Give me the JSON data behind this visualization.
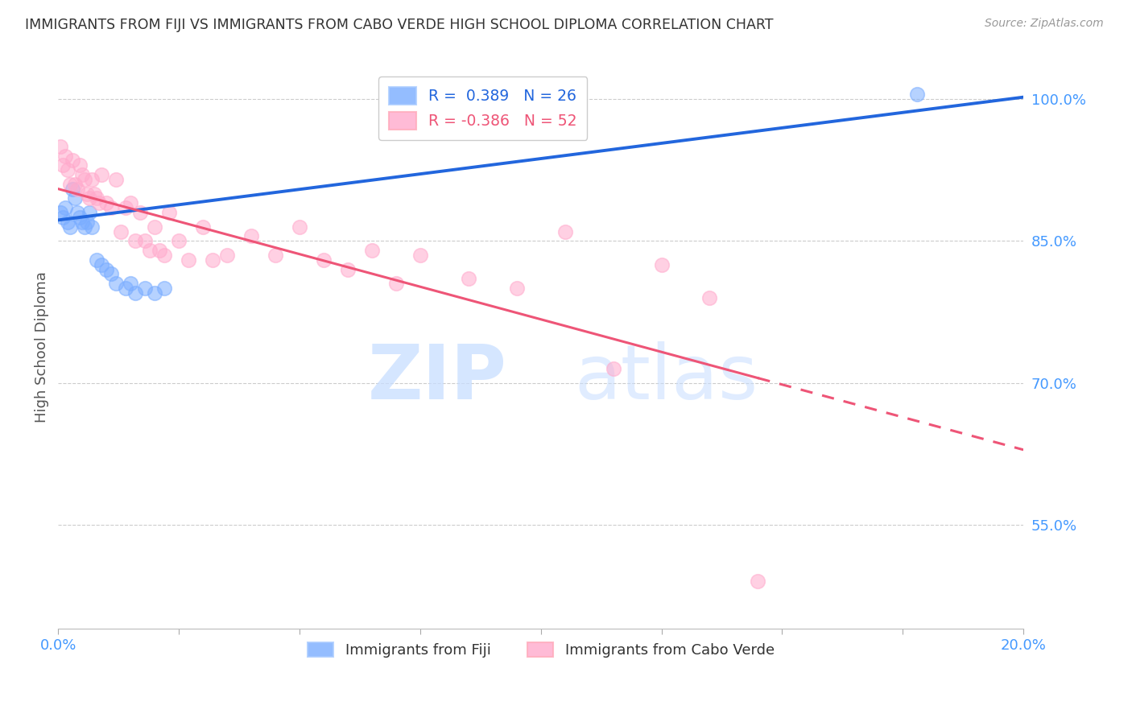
{
  "title": "IMMIGRANTS FROM FIJI VS IMMIGRANTS FROM CABO VERDE HIGH SCHOOL DIPLOMA CORRELATION CHART",
  "source": "Source: ZipAtlas.com",
  "ylabel": "High School Diploma",
  "legend_fiji": "Immigrants from Fiji",
  "legend_cabo": "Immigrants from Cabo Verde",
  "fiji_R": "0.389",
  "fiji_N": "26",
  "cabo_R": "-0.386",
  "cabo_N": "52",
  "fiji_color": "#7aadff",
  "cabo_color": "#ffaacc",
  "line_fiji_color": "#2266dd",
  "line_cabo_color": "#ee5577",
  "xlim": [
    0.0,
    20.0
  ],
  "ylim": [
    44.0,
    103.5
  ],
  "yticks": [
    55.0,
    70.0,
    85.0,
    100.0
  ],
  "xtick_positions": [
    0.0,
    2.5,
    5.0,
    7.5,
    10.0,
    12.5,
    15.0,
    17.5,
    20.0
  ],
  "fiji_x": [
    0.05,
    0.1,
    0.15,
    0.2,
    0.25,
    0.3,
    0.35,
    0.4,
    0.45,
    0.5,
    0.55,
    0.6,
    0.65,
    0.7,
    0.8,
    0.9,
    1.0,
    1.1,
    1.2,
    1.4,
    1.5,
    1.6,
    1.8,
    2.0,
    2.2,
    17.8
  ],
  "fiji_y": [
    88.0,
    87.5,
    88.5,
    87.0,
    86.5,
    90.5,
    89.5,
    88.0,
    87.5,
    87.0,
    86.5,
    87.0,
    88.0,
    86.5,
    83.0,
    82.5,
    82.0,
    81.5,
    80.5,
    80.0,
    80.5,
    79.5,
    80.0,
    79.5,
    80.0,
    100.5
  ],
  "cabo_x": [
    0.05,
    0.1,
    0.15,
    0.2,
    0.25,
    0.3,
    0.35,
    0.4,
    0.45,
    0.5,
    0.55,
    0.6,
    0.65,
    0.7,
    0.75,
    0.8,
    0.85,
    0.9,
    1.0,
    1.1,
    1.2,
    1.3,
    1.4,
    1.5,
    1.6,
    1.7,
    1.8,
    1.9,
    2.0,
    2.1,
    2.2,
    2.3,
    2.5,
    2.7,
    3.0,
    3.2,
    3.5,
    4.0,
    4.5,
    5.0,
    5.5,
    6.0,
    6.5,
    7.0,
    7.5,
    8.5,
    9.5,
    10.5,
    11.5,
    12.5,
    13.5,
    14.5
  ],
  "cabo_y": [
    95.0,
    93.0,
    94.0,
    92.5,
    91.0,
    93.5,
    91.0,
    90.5,
    93.0,
    92.0,
    91.5,
    90.0,
    89.5,
    91.5,
    90.0,
    89.5,
    89.0,
    92.0,
    89.0,
    88.5,
    91.5,
    86.0,
    88.5,
    89.0,
    85.0,
    88.0,
    85.0,
    84.0,
    86.5,
    84.0,
    83.5,
    88.0,
    85.0,
    83.0,
    86.5,
    83.0,
    83.5,
    85.5,
    83.5,
    86.5,
    83.0,
    82.0,
    84.0,
    80.5,
    83.5,
    81.0,
    80.0,
    86.0,
    71.5,
    82.5,
    79.0,
    49.0
  ],
  "watermark_zip": "ZIP",
  "watermark_atlas": "atlas",
  "background_color": "#ffffff",
  "grid_color": "#cccccc",
  "title_color": "#333333",
  "axis_label_color": "#555555",
  "tick_label_color": "#4499ff",
  "source_color": "#999999"
}
